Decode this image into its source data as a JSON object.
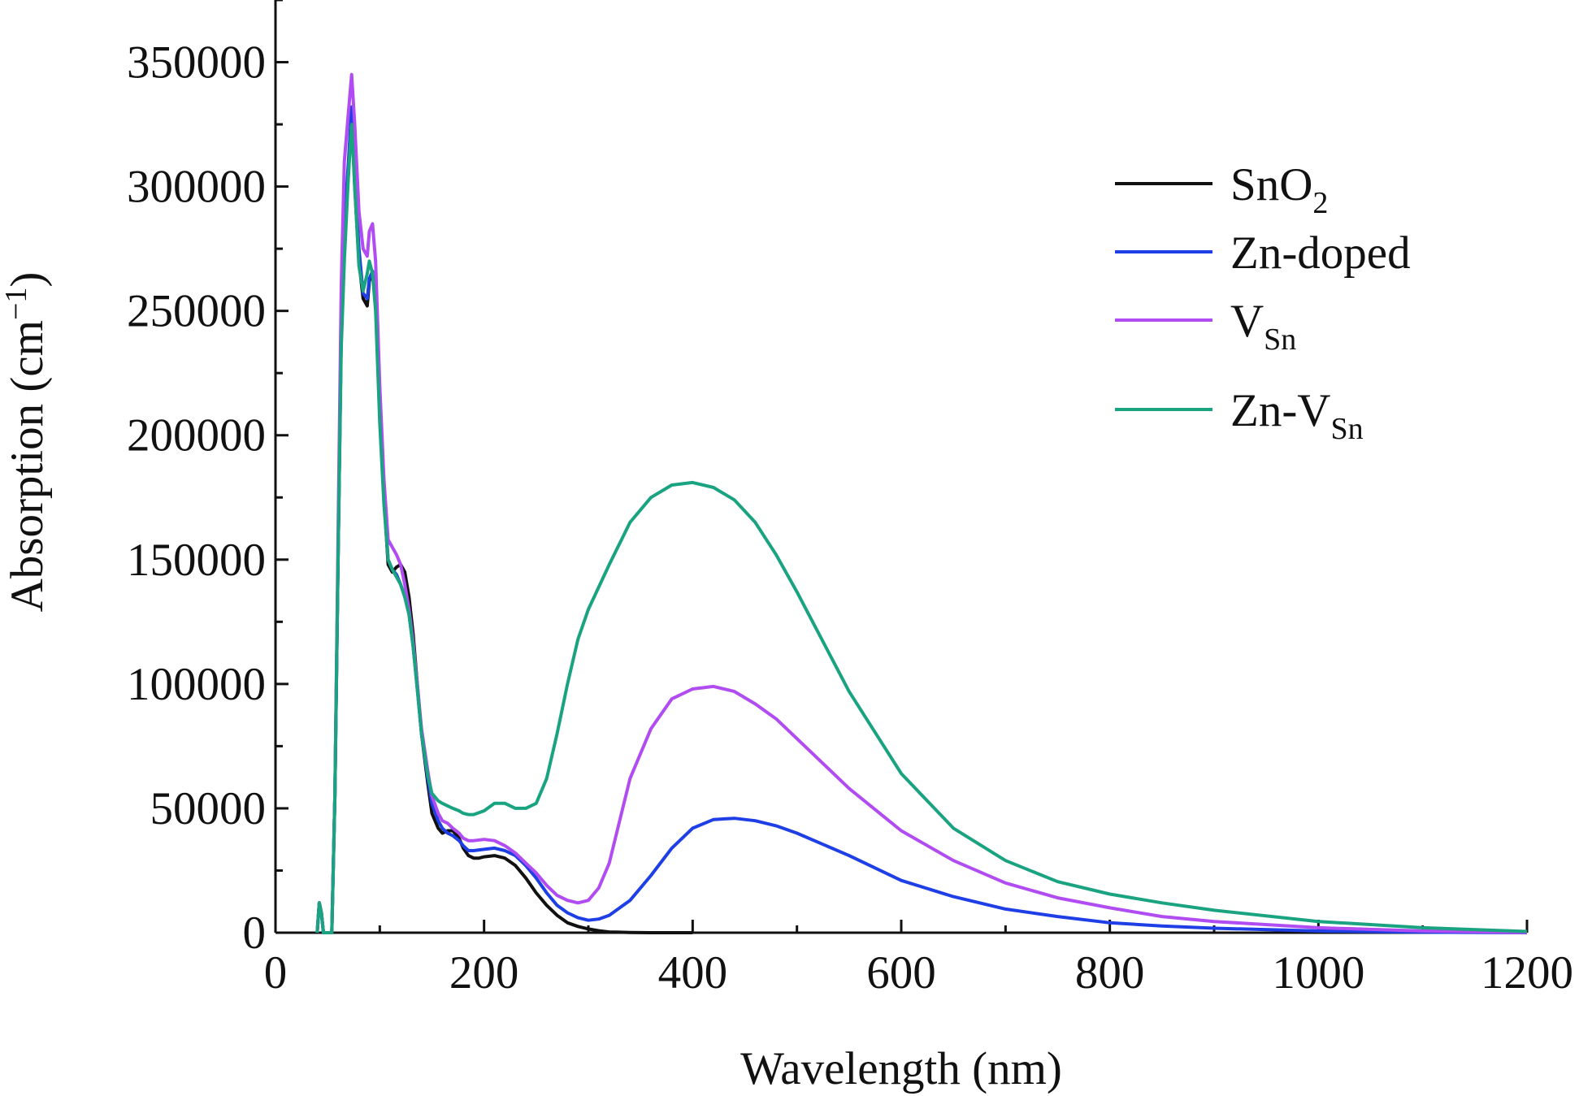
{
  "chart_data": {
    "type": "line",
    "xlabel": "Wavelength (nm)",
    "ylabel": {
      "main": "Absorption (cm",
      "sup": "−1",
      "end": ")"
    },
    "xlim": [
      0,
      1200
    ],
    "ylim": [
      0,
      375000
    ],
    "x_ticks": [
      0,
      200,
      400,
      600,
      800,
      1000,
      1200
    ],
    "x_tick_labels": [
      "0",
      "200",
      "400",
      "600",
      "800",
      "1000",
      "1200"
    ],
    "y_ticks": [
      0,
      50000,
      100000,
      150000,
      200000,
      250000,
      300000,
      350000
    ],
    "y_tick_labels": [
      "0",
      "50000",
      "100000",
      "150000",
      "200000",
      "250000",
      "300000",
      "350000"
    ],
    "grid": false,
    "legend_position": "top-right",
    "series": [
      {
        "name": "SnO",
        "name_sub": "2",
        "color": "#111111",
        "x": [
          40,
          42,
          44,
          46,
          50,
          54,
          57,
          60,
          63,
          66,
          70,
          73,
          76,
          80,
          84,
          88,
          90,
          93,
          96,
          100,
          104,
          108,
          112,
          116,
          120,
          124,
          128,
          132,
          136,
          140,
          146,
          150,
          156,
          160,
          165,
          170,
          176,
          180,
          185,
          190,
          195,
          200,
          210,
          220,
          230,
          240,
          250,
          260,
          270,
          280,
          290,
          300,
          310,
          320,
          340,
          360,
          400
        ],
        "y": [
          0,
          12000,
          8000,
          0,
          0,
          0,
          55000,
          150000,
          240000,
          280000,
          305000,
          330000,
          300000,
          270000,
          255000,
          252000,
          262000,
          265000,
          255000,
          210000,
          175000,
          148000,
          145000,
          147000,
          148000,
          145000,
          135000,
          120000,
          100000,
          80000,
          60000,
          48000,
          42000,
          40000,
          41000,
          41000,
          38000,
          34000,
          31000,
          30000,
          30000,
          30500,
          31000,
          30000,
          27000,
          22000,
          16000,
          11000,
          7000,
          4000,
          2500,
          1500,
          800,
          300,
          100,
          0,
          0
        ]
      },
      {
        "name": "Zn-doped",
        "name_sub": "",
        "color": "#1f3fe6",
        "x": [
          40,
          42,
          44,
          46,
          50,
          54,
          57,
          60,
          63,
          66,
          70,
          73,
          76,
          80,
          84,
          88,
          90,
          93,
          96,
          100,
          104,
          108,
          112,
          116,
          120,
          124,
          128,
          132,
          136,
          140,
          146,
          150,
          156,
          160,
          165,
          170,
          176,
          180,
          185,
          190,
          200,
          210,
          220,
          230,
          240,
          250,
          260,
          270,
          280,
          290,
          300,
          310,
          320,
          340,
          360,
          380,
          400,
          420,
          440,
          460,
          480,
          500,
          550,
          600,
          650,
          700,
          750,
          800,
          850,
          900,
          1000,
          1100,
          1200
        ],
        "y": [
          0,
          12000,
          8000,
          0,
          0,
          0,
          55000,
          150000,
          240000,
          285000,
          310000,
          332000,
          305000,
          275000,
          257000,
          255000,
          263000,
          266000,
          255000,
          210000,
          176000,
          150000,
          146000,
          144000,
          140000,
          135000,
          128000,
          115000,
          98000,
          80000,
          62000,
          52000,
          45000,
          42000,
          40000,
          39000,
          37000,
          35000,
          33000,
          33000,
          33500,
          34000,
          33000,
          31000,
          27000,
          22000,
          16000,
          11000,
          8000,
          6000,
          5000,
          5500,
          7000,
          13000,
          23000,
          34000,
          42000,
          45500,
          46000,
          45000,
          43000,
          40000,
          31000,
          21000,
          14500,
          9500,
          6500,
          4000,
          2700,
          1800,
          700,
          200,
          0
        ]
      },
      {
        "name": "V",
        "name_sub": "Sn",
        "color": "#b14cf2",
        "x": [
          40,
          42,
          44,
          46,
          50,
          54,
          57,
          60,
          63,
          66,
          70,
          73,
          76,
          80,
          84,
          88,
          90,
          93,
          96,
          100,
          104,
          108,
          112,
          116,
          120,
          124,
          128,
          132,
          136,
          140,
          146,
          150,
          156,
          160,
          165,
          170,
          176,
          180,
          185,
          190,
          200,
          210,
          220,
          230,
          240,
          250,
          260,
          270,
          280,
          290,
          300,
          310,
          320,
          330,
          340,
          360,
          380,
          400,
          420,
          440,
          460,
          480,
          500,
          550,
          600,
          650,
          700,
          750,
          800,
          850,
          900,
          1000,
          1100,
          1200
        ],
        "y": [
          0,
          12000,
          8000,
          0,
          0,
          0,
          55000,
          160000,
          260000,
          310000,
          330000,
          345000,
          325000,
          290000,
          275000,
          272000,
          282000,
          285000,
          270000,
          220000,
          182000,
          158000,
          155000,
          152000,
          148000,
          140000,
          130000,
          117000,
          100000,
          82000,
          65000,
          55000,
          48000,
          45000,
          44000,
          42000,
          40000,
          38000,
          37000,
          37000,
          37500,
          37000,
          35000,
          32000,
          28000,
          24000,
          19000,
          15000,
          13000,
          12000,
          13000,
          18000,
          28000,
          45000,
          62000,
          82000,
          94000,
          98000,
          99000,
          97000,
          92000,
          86000,
          78000,
          58000,
          41000,
          29000,
          20000,
          14000,
          10000,
          6500,
          4500,
          2000,
          700,
          100
        ]
      },
      {
        "name": "Zn-V",
        "name_sub": "Sn",
        "color": "#1aa380",
        "x": [
          40,
          42,
          44,
          46,
          50,
          54,
          57,
          60,
          63,
          66,
          70,
          73,
          76,
          80,
          84,
          88,
          90,
          93,
          96,
          100,
          104,
          108,
          112,
          116,
          120,
          124,
          128,
          132,
          136,
          140,
          146,
          150,
          156,
          160,
          165,
          170,
          176,
          180,
          185,
          190,
          200,
          210,
          220,
          230,
          240,
          250,
          260,
          270,
          280,
          290,
          300,
          320,
          340,
          360,
          380,
          400,
          420,
          440,
          460,
          480,
          500,
          550,
          600,
          650,
          700,
          750,
          800,
          850,
          900,
          1000,
          1100,
          1200
        ],
        "y": [
          0,
          12000,
          8000,
          0,
          0,
          0,
          55000,
          150000,
          235000,
          270000,
          305000,
          325000,
          300000,
          268000,
          258000,
          265000,
          270000,
          265000,
          250000,
          205000,
          172000,
          150000,
          146000,
          143000,
          140000,
          135000,
          128000,
          115000,
          98000,
          80000,
          63000,
          56000,
          53000,
          52000,
          51000,
          50000,
          49000,
          48000,
          47500,
          47500,
          49000,
          52000,
          52000,
          50000,
          50000,
          52000,
          62000,
          80000,
          100000,
          118000,
          130000,
          148000,
          165000,
          175000,
          180000,
          181000,
          179000,
          174000,
          165000,
          152000,
          137000,
          97000,
          64000,
          42000,
          29000,
          20500,
          15500,
          12000,
          9000,
          4500,
          2000,
          500
        ]
      }
    ]
  }
}
